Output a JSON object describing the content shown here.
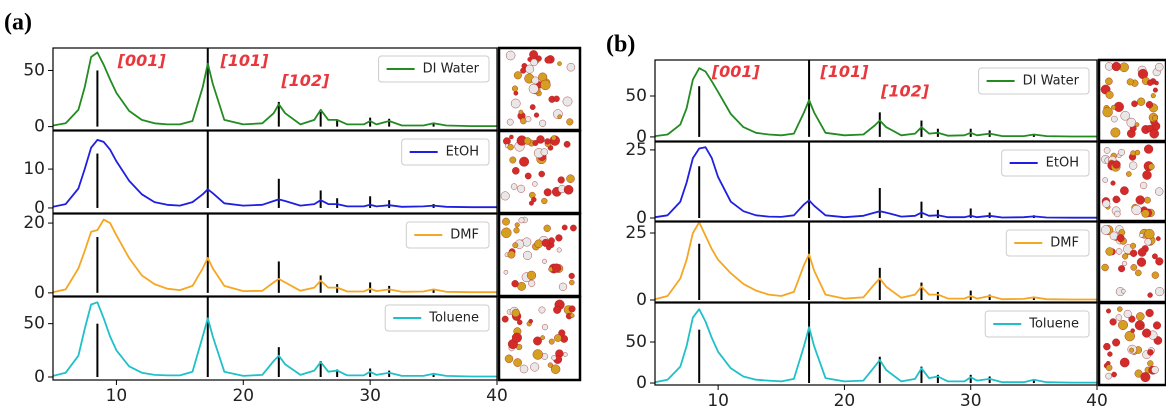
{
  "chart_data": [
    {
      "type": "line",
      "panel_label": "(a)",
      "xlim": [
        5,
        40
      ],
      "ylim": [
        -3,
        70
      ],
      "yticks": [
        0,
        50
      ],
      "legend": "upper right",
      "x": [
        5,
        6,
        7,
        7.5,
        8,
        8.5,
        9,
        9.5,
        10,
        11,
        12,
        13,
        14,
        15,
        16,
        16.8,
        17.2,
        17.6,
        18.5,
        20,
        21.5,
        22.4,
        22.8,
        23.3,
        24.5,
        25.6,
        26.1,
        26.7,
        27.4,
        28.2,
        29.5,
        30,
        30.5,
        31.5,
        32.5,
        34.2,
        35,
        36,
        38,
        40
      ],
      "series": [
        {
          "name": "DI Water",
          "color": "#228b22",
          "values": [
            1,
            3,
            15,
            35,
            62,
            66,
            55,
            42,
            30,
            14,
            6,
            3,
            2,
            2,
            5,
            35,
            56,
            38,
            6,
            2,
            3,
            12,
            20,
            12,
            2,
            6,
            15,
            6,
            6,
            2,
            2,
            5,
            2,
            5,
            1,
            1,
            3,
            1,
            0.5,
            0.5
          ]
        }
      ],
      "reference": {
        "color": "#000000",
        "x": [
          8.5,
          17.2,
          22.8,
          26.1,
          27.4,
          30,
          31.5,
          35
        ],
        "values": [
          50,
          70,
          22,
          13,
          6,
          8,
          7,
          3
        ]
      },
      "annotations": [
        {
          "text": "[001]",
          "x": 10.1,
          "y": 58
        },
        {
          "text": "[101]",
          "x": 18.2,
          "y": 58
        },
        {
          "text": "[102]",
          "x": 23,
          "y": 40
        }
      ]
    },
    {
      "type": "line",
      "xlim": [
        5,
        40
      ],
      "ylim": [
        -1.3,
        19.8
      ],
      "yticks": [
        0,
        10
      ],
      "legend": "upper right",
      "x": [
        5,
        6,
        7,
        7.5,
        8,
        8.5,
        9,
        9.5,
        10,
        11,
        12,
        13,
        14,
        15,
        16,
        16.8,
        17.2,
        17.6,
        18.5,
        20,
        21.5,
        22.4,
        22.8,
        23.3,
        24.5,
        25.6,
        26.1,
        26.7,
        27.4,
        28.2,
        29.5,
        30,
        30.5,
        31.5,
        32.5,
        34.2,
        35,
        36,
        38,
        40
      ],
      "series": [
        {
          "name": "EtOH",
          "color": "#1f1fe0",
          "values": [
            0.3,
            1,
            5,
            10,
            15.5,
            17.5,
            17,
            15,
            12,
            7,
            3.5,
            1.5,
            0.8,
            0.6,
            1.5,
            3.5,
            4.8,
            3.8,
            1.2,
            0.6,
            0.8,
            1.8,
            2.2,
            1.8,
            0.6,
            1,
            2,
            1,
            1,
            0.4,
            0.4,
            0.8,
            0.4,
            0.7,
            0.3,
            0.4,
            0.6,
            0.3,
            0.2,
            0.2
          ]
        }
      ],
      "reference": {
        "color": "#000000",
        "x": [
          8.5,
          17.2,
          22.8,
          26.1,
          27.4,
          30,
          31.5,
          35
        ],
        "values": [
          14,
          19.8,
          7.5,
          4.5,
          2.5,
          3,
          2,
          1
        ]
      }
    },
    {
      "type": "line",
      "xlim": [
        5,
        40
      ],
      "ylim": [
        -0.9,
        22.6
      ],
      "yticks": [
        0,
        20
      ],
      "legend": "upper right",
      "x": [
        5,
        6,
        7,
        7.5,
        8,
        8.5,
        9,
        9.5,
        10,
        11,
        12,
        13,
        14,
        15,
        16,
        16.8,
        17.2,
        17.6,
        18.5,
        20,
        21.5,
        22.4,
        22.8,
        23.3,
        24.5,
        25.6,
        26.1,
        26.7,
        27.4,
        28.2,
        29.5,
        30,
        30.5,
        31.5,
        32.5,
        34.2,
        35,
        36,
        38,
        40
      ],
      "series": [
        {
          "name": "DMF",
          "color": "#f5a623",
          "values": [
            0.2,
            1,
            7,
            12,
            17.5,
            18,
            21,
            20,
            16.5,
            10,
            5,
            2.5,
            1.2,
            0.8,
            2,
            7,
            10,
            7,
            2,
            0.5,
            0.6,
            3,
            4,
            3,
            0.6,
            1.5,
            3.5,
            1.5,
            1.5,
            0.4,
            0.4,
            1.2,
            0.5,
            1,
            0.3,
            0.4,
            1,
            0.3,
            0.2,
            0.2
          ]
        }
      ],
      "reference": {
        "color": "#000000",
        "x": [
          8.5,
          17.2,
          22.8,
          26.1,
          27.4,
          30,
          31.5,
          35
        ],
        "values": [
          16,
          22.6,
          9,
          5,
          2.5,
          3,
          2,
          1
        ]
      }
    },
    {
      "type": "line",
      "xlim": [
        5,
        40
      ],
      "ylim": [
        -2.8,
        75
      ],
      "yticks": [
        0,
        50
      ],
      "xticks": [
        10,
        20,
        30,
        40
      ],
      "legend": "upper right",
      "x": [
        5,
        6,
        7,
        7.5,
        8,
        8.5,
        9,
        9.5,
        10,
        11,
        12,
        13,
        14,
        15,
        16,
        16.8,
        17.2,
        17.6,
        18.5,
        20,
        21.5,
        22.4,
        22.8,
        23.3,
        24.5,
        25.6,
        26.1,
        26.7,
        27.4,
        28.2,
        29.5,
        30,
        30.5,
        31.5,
        32.5,
        34.2,
        35,
        36,
        38,
        40
      ],
      "series": [
        {
          "name": "Toluene",
          "color": "#20c0c8",
          "values": [
            1,
            4,
            20,
            45,
            68,
            70,
            55,
            38,
            25,
            10,
            4,
            2,
            1.5,
            1.5,
            5,
            38,
            55,
            38,
            5,
            1,
            2,
            15,
            20,
            12,
            2,
            6,
            14,
            5,
            6,
            1.5,
            1.5,
            5,
            2,
            4,
            1,
            1,
            3,
            1,
            0.5,
            0.5
          ]
        }
      ],
      "reference": {
        "color": "#000000",
        "x": [
          8.5,
          17.2,
          22.8,
          26.1,
          27.4,
          30,
          31.5,
          35
        ],
        "values": [
          50,
          75,
          28,
          15,
          7,
          8,
          6,
          2
        ]
      }
    },
    {
      "type": "line",
      "panel_label": "(b)",
      "xlim": [
        5,
        40
      ],
      "ylim": [
        -5,
        94
      ],
      "yticks": [
        0,
        50
      ],
      "legend": "upper right",
      "x": [
        5,
        6,
        7,
        7.5,
        8,
        8.5,
        9,
        9.5,
        10,
        11,
        12,
        13,
        14,
        15,
        16,
        16.8,
        17.2,
        17.6,
        18.5,
        20,
        21.5,
        22.4,
        22.8,
        23.3,
        24.5,
        25.6,
        26.1,
        26.7,
        27.4,
        28.2,
        29.5,
        30,
        30.5,
        31.5,
        32.5,
        34.2,
        35,
        36,
        38,
        40
      ],
      "series": [
        {
          "name": "DI Water",
          "color": "#228b22",
          "values": [
            1,
            3,
            15,
            35,
            70,
            84,
            80,
            68,
            55,
            28,
            12,
            5,
            3,
            2,
            4,
            30,
            45,
            30,
            5,
            2,
            3,
            14,
            20,
            12,
            2,
            4,
            12,
            4,
            5,
            1.5,
            2,
            5,
            2,
            4,
            1,
            1,
            3,
            1,
            0.5,
            0.5
          ]
        }
      ],
      "reference": {
        "color": "#000000",
        "x": [
          8.5,
          17.2,
          22.8,
          26.1,
          27.4,
          30,
          31.5,
          35
        ],
        "values": [
          62,
          94,
          30,
          20,
          10,
          10,
          8,
          3
        ]
      },
      "annotations": [
        {
          "text": "[001]",
          "x": 9.5,
          "y": 79
        },
        {
          "text": "[101]",
          "x": 18.1,
          "y": 79
        },
        {
          "text": "[102]",
          "x": 22.9,
          "y": 55
        }
      ]
    },
    {
      "type": "line",
      "xlim": [
        5,
        40
      ],
      "ylim": [
        -1.1,
        27.9
      ],
      "yticks": [
        0,
        25
      ],
      "legend": "upper right",
      "x": [
        5,
        6,
        7,
        7.5,
        8,
        8.5,
        9,
        9.5,
        10,
        11,
        12,
        13,
        14,
        15,
        16,
        16.8,
        17.2,
        17.6,
        18.5,
        20,
        21.5,
        22.4,
        22.8,
        23.3,
        24.5,
        25.6,
        26.1,
        26.7,
        27.4,
        28.2,
        29.5,
        30,
        30.5,
        31.5,
        32.5,
        34.2,
        35,
        36,
        38,
        40
      ],
      "series": [
        {
          "name": "EtOH",
          "color": "#1f1fe0",
          "values": [
            0.3,
            1,
            6,
            13,
            22,
            25.5,
            26,
            22,
            15,
            6,
            2.5,
            1,
            0.5,
            0.4,
            1,
            5,
            6.5,
            4.5,
            1,
            0.3,
            0.8,
            2,
            2.5,
            2,
            0.5,
            0.8,
            2,
            0.8,
            1,
            0.3,
            0.3,
            0.8,
            0.3,
            0.8,
            0.2,
            0.3,
            0.6,
            0.2,
            0.1,
            0.1
          ]
        }
      ],
      "reference": {
        "color": "#000000",
        "x": [
          8.5,
          17.2,
          22.8,
          26.1,
          27.4,
          30,
          31.5,
          35
        ],
        "values": [
          19,
          27.9,
          11,
          6,
          3,
          3.5,
          2,
          1
        ]
      }
    },
    {
      "type": "line",
      "xlim": [
        5,
        40
      ],
      "ylim": [
        -0.75,
        29.1
      ],
      "yticks": [
        0,
        25
      ],
      "legend": "upper right",
      "x": [
        5,
        6,
        7,
        7.5,
        8,
        8.5,
        9,
        9.5,
        10,
        11,
        12,
        13,
        14,
        15,
        16,
        16.8,
        17.2,
        17.6,
        18.5,
        20,
        21.5,
        22.4,
        22.8,
        23.3,
        24.5,
        25.6,
        26.1,
        26.7,
        27.4,
        28.2,
        29.5,
        30,
        30.5,
        31.5,
        32.5,
        34.2,
        35,
        36,
        38,
        40
      ],
      "series": [
        {
          "name": "DMF",
          "color": "#f5a623",
          "values": [
            0.3,
            1.5,
            8,
            15,
            25,
            29,
            24,
            19,
            15,
            10,
            6,
            3.5,
            2,
            1.5,
            3,
            13,
            17,
            11,
            2,
            0.5,
            1,
            6,
            8,
            5,
            0.8,
            2,
            5,
            2,
            2,
            0.5,
            0.5,
            1.5,
            0.5,
            1.5,
            0.3,
            0.4,
            1,
            0.3,
            0.2,
            0.2
          ]
        }
      ],
      "reference": {
        "color": "#000000",
        "x": [
          8.5,
          17.2,
          22.8,
          26.1,
          27.4,
          30,
          31.5,
          35
        ],
        "values": [
          21,
          29,
          12,
          6.5,
          3,
          3.5,
          2,
          1
        ]
      }
    },
    {
      "type": "line",
      "xlim": [
        5,
        40
      ],
      "ylim": [
        -2.4,
        97.5
      ],
      "yticks": [
        0,
        50
      ],
      "xticks": [
        10,
        20,
        30,
        40
      ],
      "legend": "upper right",
      "x": [
        5,
        6,
        7,
        7.5,
        8,
        8.5,
        9,
        9.5,
        10,
        11,
        12,
        13,
        14,
        15,
        16,
        16.8,
        17.2,
        17.6,
        18.5,
        20,
        21.5,
        22.4,
        22.8,
        23.3,
        24.5,
        25.6,
        26.1,
        26.7,
        27.4,
        28.2,
        29.5,
        30,
        30.5,
        31.5,
        32.5,
        34.2,
        35,
        36,
        38,
        40
      ],
      "series": [
        {
          "name": "Toluene",
          "color": "#20c0c8",
          "values": [
            1,
            4,
            20,
            45,
            80,
            90,
            75,
            55,
            38,
            18,
            8,
            4,
            3,
            2,
            5,
            45,
            68,
            45,
            6,
            2,
            3,
            20,
            28,
            16,
            2,
            5,
            18,
            6,
            8,
            2,
            2,
            7,
            3,
            5,
            1,
            1,
            4,
            1,
            0.5,
            0.5
          ]
        }
      ],
      "reference": {
        "color": "#000000",
        "x": [
          8.5,
          17.2,
          22.8,
          26.1,
          27.4,
          30,
          31.5,
          35
        ],
        "values": [
          65,
          97.5,
          32,
          20,
          10,
          10,
          8,
          3
        ]
      }
    }
  ]
}
